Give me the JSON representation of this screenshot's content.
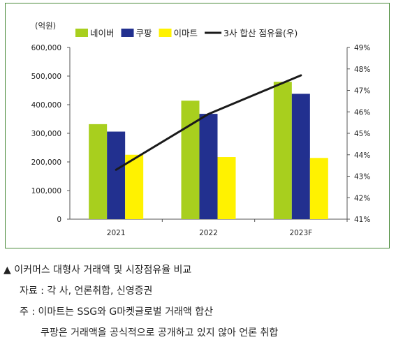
{
  "chart_data": {
    "type": "bar",
    "unit_label": "(억원)",
    "categories": [
      "2021",
      "2022",
      "2023F"
    ],
    "series": [
      {
        "name": "네이버",
        "type": "bar",
        "axis": "left",
        "color": "#a8cf1e",
        "values": [
          332000,
          414000,
          480000
        ]
      },
      {
        "name": "쿠팡",
        "type": "bar",
        "axis": "left",
        "color": "#22308f",
        "values": [
          306000,
          368000,
          438000
        ]
      },
      {
        "name": "이마트",
        "type": "bar",
        "axis": "left",
        "color": "#fff200",
        "values": [
          225000,
          217000,
          214000
        ]
      },
      {
        "name": "3사 합산 점유율(우)",
        "type": "line",
        "axis": "right",
        "color": "#1a1a1a",
        "values": [
          43.3,
          45.9,
          47.7
        ]
      }
    ],
    "y_left": {
      "min": 0,
      "max": 600000,
      "ticks": [
        "0",
        "100,000",
        "200,000",
        "300,000",
        "400,000",
        "500,000",
        "600,000"
      ]
    },
    "y_right": {
      "min": 41,
      "max": 49,
      "ticks": [
        "41%",
        "42%",
        "43%",
        "44%",
        "45%",
        "46%",
        "47%",
        "48%",
        "49%"
      ]
    },
    "grid": false,
    "legend_position": "top"
  },
  "caption": {
    "title": "▲ 이커머스 대형사 거래액 및 시장점유율 비교",
    "source": "자료 : 각 사, 언론취합, 신영증권",
    "note_1": "주 : 이마트는 SSG와 G마켓글로벌 거래액 합산",
    "note_2": "쿠팡은 거래액을 공식적으로 공개하고 있지 않아 언론 취합"
  }
}
